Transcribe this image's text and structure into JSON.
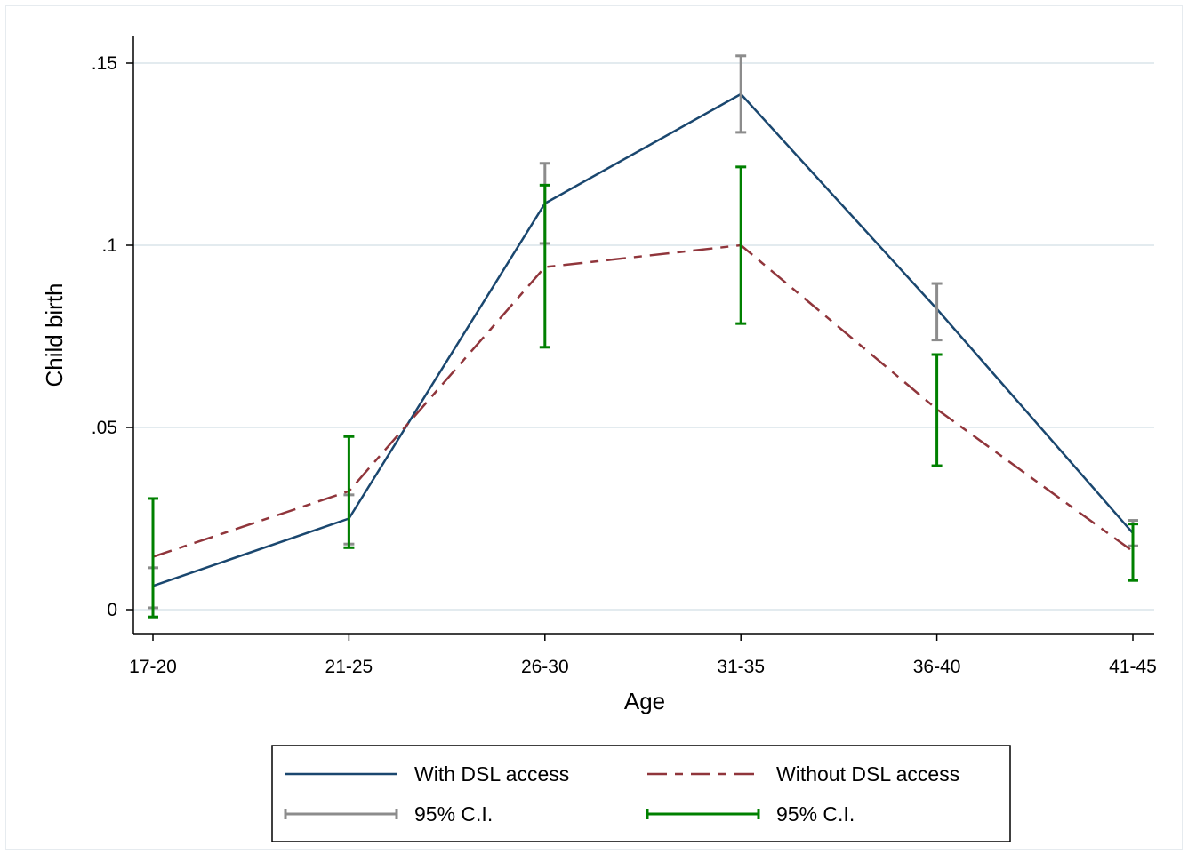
{
  "chart_data": {
    "type": "line",
    "categories": [
      "17-20",
      "21-25",
      "26-30",
      "31-35",
      "36-40",
      "41-45"
    ],
    "xlabel": "Age",
    "ylabel": "Child birth",
    "ylim": [
      0,
      0.15
    ],
    "yticks": [
      {
        "value": 0,
        "label": "0"
      },
      {
        "value": 0.05,
        "label": ".05"
      },
      {
        "value": 0.1,
        "label": ".1"
      },
      {
        "value": 0.15,
        "label": ".15"
      }
    ],
    "grid": true,
    "legend_position": "bottom",
    "series": [
      {
        "name": "With DSL access",
        "color": "#1a476f",
        "style": "solid",
        "values": [
          0.0065,
          0.025,
          0.1115,
          0.1415,
          0.0825,
          0.021
        ],
        "ci_low": [
          0.0005,
          0.018,
          0.1005,
          0.131,
          0.074,
          0.0175
        ],
        "ci_high": [
          0.0115,
          0.0315,
          0.1225,
          0.152,
          0.0895,
          0.0245
        ],
        "ci_name": "95% C.I.",
        "ci_color": "#8c8c8c"
      },
      {
        "name": "Without DSL access",
        "color": "#90353b",
        "style": "dashed",
        "values": [
          0.0145,
          0.0325,
          0.094,
          0.1,
          0.055,
          0.016
        ],
        "ci_low": [
          -0.002,
          0.017,
          0.072,
          0.0785,
          0.0395,
          0.008
        ],
        "ci_high": [
          0.0305,
          0.0475,
          0.1165,
          0.1215,
          0.07,
          0.0235
        ],
        "ci_name": "95% C.I.",
        "ci_color": "#008000"
      }
    ]
  }
}
